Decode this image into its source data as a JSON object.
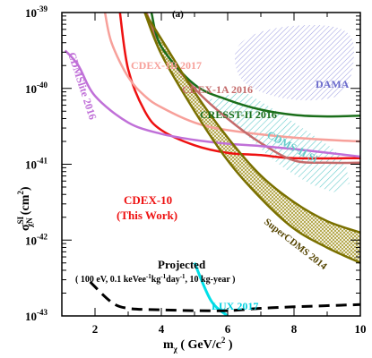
{
  "figure": {
    "panel_label": "(a)"
  },
  "axes": {
    "ylabel_base": "σ",
    "ylabel_sup": "SI",
    "ylabel_sub": "χN",
    "ylabel_unit": "(cm",
    "ylabel_unit_sup": "2",
    "ylabel_unit_end": ")",
    "xlabel_base": "m",
    "xlabel_sub": "χ",
    "xlabel_unit": " ( GeV/c",
    "xlabel_unit_sup": "2",
    "xlabel_unit_end": " )",
    "y_ticks": [
      {
        "base": "10",
        "exp": "-39",
        "value": -39
      },
      {
        "base": "10",
        "exp": "-40",
        "value": -40
      },
      {
        "base": "10",
        "exp": "-41",
        "value": -41
      },
      {
        "base": "10",
        "exp": "-42",
        "value": -42
      },
      {
        "base": "10",
        "exp": "-43",
        "value": -43
      }
    ],
    "x_ticks": [
      {
        "label": "2",
        "value": 2
      },
      {
        "label": "4",
        "value": 4
      },
      {
        "label": "6",
        "value": 6
      },
      {
        "label": "8",
        "value": 8
      },
      {
        "label": "10",
        "value": 10
      }
    ]
  },
  "colors": {
    "cdex10": "#ee1111",
    "cdex1b": "#f7a09a",
    "cdex1a": "#c46a6a",
    "cresst": "#1a6e1a",
    "cdmslite": "#c070d8",
    "cdms_si": "#66cccc",
    "supercdms": "#7a7000",
    "dama": "#6b6bcc",
    "lux": "#00e0e8",
    "projected": "#000000"
  },
  "annotations": {
    "dama": "DAMA",
    "cdex1b": "CDEX-1B 2017",
    "cdex1a": "CDEX-1A 2016",
    "cresst": "CRESST-II 2016",
    "cdmslite": "CDMSlite 2016",
    "cdms_si": "CDMS-II Si",
    "cdex10_line1": "CDEX-10",
    "cdex10_line2": "(This Work)",
    "supercdms": "SuperCDMS 2014",
    "projected_title": "Projected",
    "projected_detail_a": "( 100 eV, 0.1 keVee",
    "projected_detail_b": "kg",
    "projected_detail_c": "day",
    "projected_detail_d": ", 10 kg-year )",
    "projected_exp": "-1",
    "lux": "LUX 2017"
  },
  "chart_data": {
    "type": "line",
    "xlim": [
      1,
      10
    ],
    "ylim_log10": [
      -43,
      -39
    ],
    "y_scale": "log",
    "grid": false,
    "series": [
      {
        "name": "CDEX-10 (This Work)",
        "x": [
          2.75,
          3.0,
          3.5,
          4.0,
          5.0,
          6.0,
          7.0,
          8.0,
          10.0
        ],
        "y_log10": [
          -39.0,
          -39.75,
          -40.3,
          -40.55,
          -40.75,
          -40.85,
          -40.88,
          -40.92,
          -40.92
        ]
      },
      {
        "name": "CDEX-1B 2017",
        "x": [
          2.3,
          2.5,
          3.0,
          3.5,
          4.0,
          5.0,
          6.0,
          8.0,
          10.0
        ],
        "y_log10": [
          -39.0,
          -39.4,
          -39.85,
          -40.1,
          -40.25,
          -40.45,
          -40.55,
          -40.65,
          -40.7
        ]
      },
      {
        "name": "CDEX-1A 2016",
        "x": [
          3.55,
          4.0,
          5.0,
          6.0,
          7.0,
          8.0,
          9.0,
          10.0
        ],
        "y_log10": [
          -39.0,
          -39.45,
          -40.0,
          -40.4,
          -40.72,
          -40.95,
          -40.98,
          -40.98
        ]
      },
      {
        "name": "CRESST-II 2016",
        "x": [
          3.7,
          4.0,
          5.0,
          6.0,
          7.0,
          8.0,
          9.0,
          10.0
        ],
        "y_log10": [
          -39.0,
          -39.45,
          -39.95,
          -40.15,
          -40.28,
          -40.35,
          -40.37,
          -40.36
        ]
      },
      {
        "name": "CDMSlite 2016",
        "x": [
          1.1,
          1.5,
          2.0,
          3.0,
          4.0,
          5.0,
          6.0,
          7.0,
          8.0,
          10.0
        ],
        "y_log10": [
          -39.5,
          -39.7,
          -40.1,
          -40.45,
          -40.6,
          -40.68,
          -40.73,
          -40.76,
          -40.8,
          -40.9
        ]
      },
      {
        "name": "LUX 2017",
        "x": [
          5.0,
          5.5,
          6.0
        ],
        "y_log10": [
          -42.3,
          -42.8,
          -43.0
        ]
      },
      {
        "name": "Projected",
        "x": [
          1.85,
          2.5,
          3.0,
          4.0,
          5.0,
          6.0,
          7.0,
          8.0,
          10.0
        ],
        "y_log10": [
          -42.55,
          -42.82,
          -42.9,
          -42.92,
          -42.93,
          -42.93,
          -42.9,
          -42.88,
          -42.85
        ]
      },
      {
        "name": "SuperCDMS 2014",
        "type": "band",
        "x": [
          3.5,
          4.0,
          5.0,
          6.0,
          7.0,
          8.0,
          9.0,
          10.0
        ],
        "y_low_log10": [
          -39.0,
          -39.55,
          -40.3,
          -40.95,
          -41.45,
          -41.85,
          -42.1,
          -42.3
        ],
        "y_high_log10": [
          -39.0,
          -39.35,
          -40.05,
          -40.65,
          -41.15,
          -41.5,
          -41.75,
          -41.9
        ]
      },
      {
        "name": "CDMS-II Si",
        "type": "region"
      },
      {
        "name": "DAMA",
        "type": "region"
      }
    ]
  }
}
